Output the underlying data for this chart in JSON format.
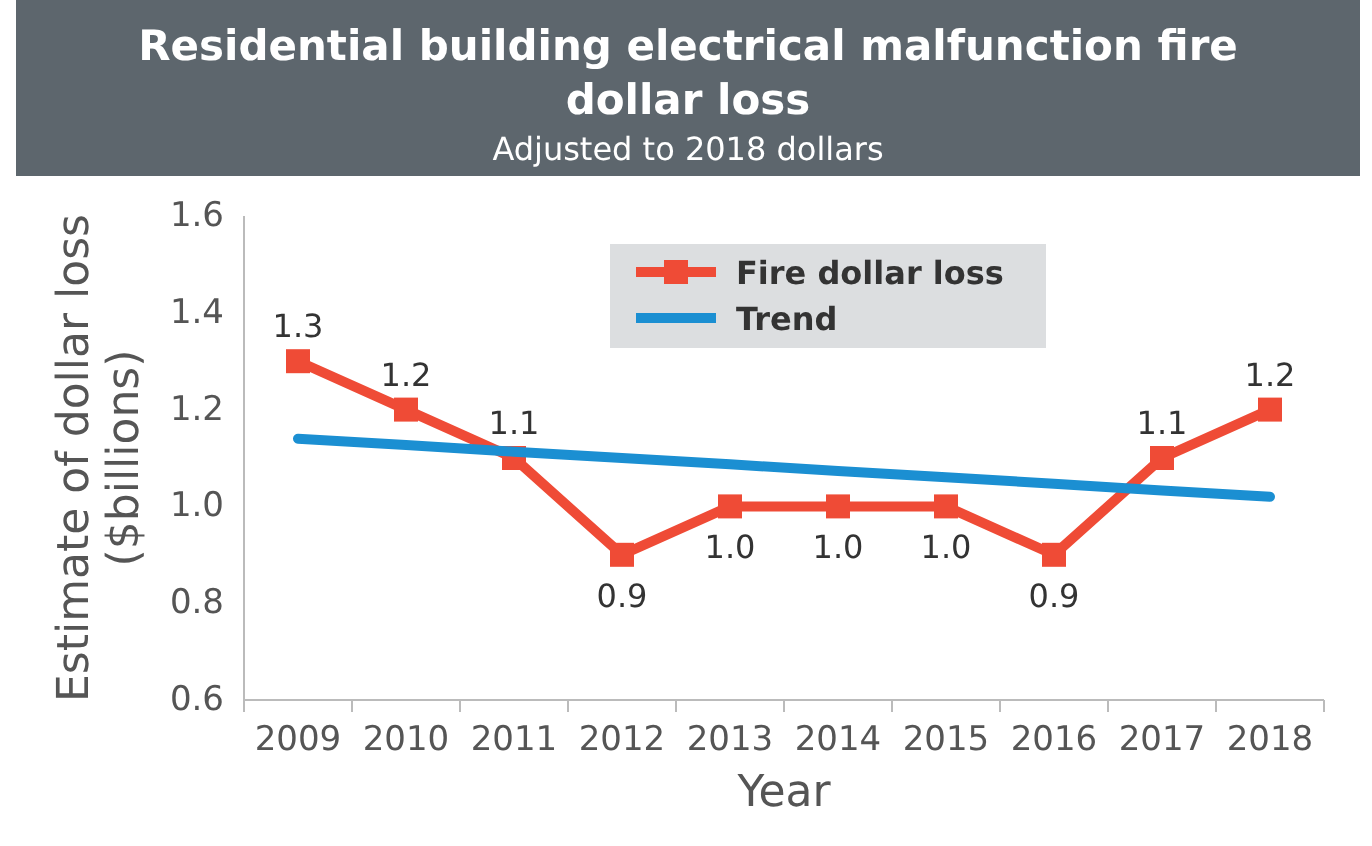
{
  "chart_data": {
    "type": "line",
    "title": "Residential building electrical malfunction fire dollar loss",
    "subtitle": "Adjusted to 2018 dollars",
    "xlabel": "Year",
    "ylabel": "Estimate of dollar loss\n($billions)",
    "categories": [
      "2009",
      "2010",
      "2011",
      "2012",
      "2013",
      "2014",
      "2015",
      "2016",
      "2017",
      "2018"
    ],
    "series": [
      {
        "name": "Fire dollar loss",
        "color": "#ef4b36",
        "values": [
          1.3,
          1.2,
          1.1,
          0.9,
          1.0,
          1.0,
          1.0,
          0.9,
          1.1,
          1.2
        ],
        "value_labels": [
          "1.3",
          "1.2",
          "1.1",
          "0.9",
          "1.0",
          "1.0",
          "1.0",
          "0.9",
          "1.1",
          "1.2"
        ],
        "marker": "square"
      },
      {
        "name": "Trend",
        "color": "#1b8fd2",
        "values": [
          1.14,
          1.127,
          1.113,
          1.1,
          1.087,
          1.073,
          1.06,
          1.047,
          1.033,
          1.02
        ],
        "marker": "none"
      }
    ],
    "ylim": [
      0.6,
      1.6
    ],
    "yticks": [
      {
        "value": 0.6,
        "label": "0.6"
      },
      {
        "value": 0.8,
        "label": "0.8"
      },
      {
        "value": 1.0,
        "label": "1.0"
      },
      {
        "value": 1.2,
        "label": "1.2"
      },
      {
        "value": 1.4,
        "label": "1.4"
      },
      {
        "value": 1.6,
        "label": "1.6"
      }
    ],
    "legend": "top",
    "grid": false
  }
}
